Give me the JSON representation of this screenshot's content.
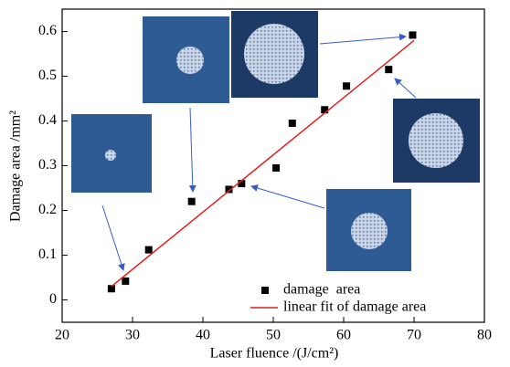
{
  "chart_data": {
    "type": "scatter",
    "x_label": "Laser fluence /(J/cm²)",
    "y_label": "Damage  area /mm²",
    "xlim": [
      20,
      80
    ],
    "ylim": [
      -0.05,
      0.65
    ],
    "xticks": [
      20,
      30,
      40,
      50,
      60,
      70,
      80
    ],
    "yticks": [
      0,
      {
        "value": 0.1,
        "label": "0.1"
      },
      {
        "value": 0.2,
        "label": "0.2"
      },
      {
        "value": 0.3,
        "label": "0.3"
      },
      {
        "value": 0.4,
        "label": "0.4"
      },
      {
        "value": 0.5,
        "label": "0.5"
      },
      {
        "value": 0.6,
        "label": "0.6"
      }
    ],
    "legend": "lower right",
    "series": [
      {
        "name": "damage  area",
        "color": "#000000",
        "marker": "square",
        "x": [
          27,
          29,
          32.3,
          38.4,
          43.7,
          45.5,
          50.4,
          52.7,
          57.3,
          60.4,
          66.4,
          69.8
        ],
        "values": [
          0.025,
          0.042,
          0.112,
          0.22,
          0.247,
          0.26,
          0.295,
          0.395,
          0.425,
          0.478,
          0.515,
          0.592
        ]
      },
      {
        "name": "linear fit of damage area",
        "color": "#e02020",
        "marker": "line",
        "x": [
          27,
          70
        ],
        "values": [
          0.03,
          0.58
        ]
      }
    ]
  }
}
